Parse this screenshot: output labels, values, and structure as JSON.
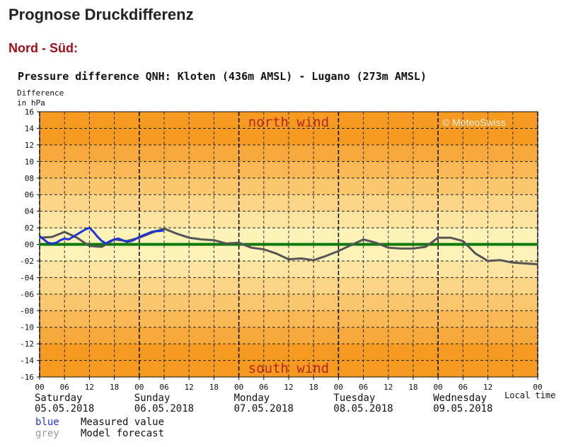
{
  "page": {
    "title": "Prognose Druckdifferenz",
    "section": "Nord - Süd:"
  },
  "colors": {
    "title_red": "#a0101a",
    "band_outer": "#f79a22",
    "band_inner": "#fff3ba",
    "zero_line": "#0a7a0a",
    "measured": "#1f33d6",
    "forecast": "#555555",
    "wind_label": "#b3251e"
  },
  "chart_data": {
    "type": "line",
    "title": "Pressure difference QNH: Kloten (436m AMSL) - Lugano (273m AMSL)",
    "ylabel": [
      "Difference",
      "in hPa"
    ],
    "ylim": [
      -16,
      16
    ],
    "yticks": [
      -16,
      -14,
      -12,
      -10,
      -8,
      -6,
      -4,
      -2,
      0,
      2,
      4,
      6,
      8,
      10,
      12,
      14,
      16
    ],
    "ytick_labels": [
      "-16",
      "-14",
      "-12",
      "-10",
      "-08",
      "-06",
      "-04",
      "-02",
      "00",
      "02",
      "04",
      "06",
      "08",
      "10",
      "12",
      "14",
      "16"
    ],
    "xlim": [
      0,
      120
    ],
    "xlabel": "Local time",
    "xtick_labels": [
      "00",
      "06",
      "12",
      "18",
      "00",
      "06",
      "12",
      "18",
      "00",
      "06",
      "12",
      "18",
      "00",
      "06",
      "12",
      "18",
      "00",
      "06",
      "12",
      "00"
    ],
    "xtick_hours": [
      0,
      6,
      12,
      18,
      24,
      30,
      36,
      42,
      48,
      54,
      60,
      66,
      72,
      78,
      84,
      90,
      96,
      102,
      108,
      120
    ],
    "days": [
      {
        "name": "Saturday",
        "date": "05.05.2018",
        "hour": 0
      },
      {
        "name": "Sunday",
        "date": "06.05.2018",
        "hour": 24
      },
      {
        "name": "Monday",
        "date": "07.05.2018",
        "hour": 48
      },
      {
        "name": "Tuesday",
        "date": "08.05.2018",
        "hour": 72
      },
      {
        "name": "Wednesday",
        "date": "09.05.2018",
        "hour": 96
      }
    ],
    "annotations": {
      "north": "north wind",
      "south": "south wind",
      "copyright": "© MeteoSwiss"
    },
    "legend": [
      {
        "color_word": "blue",
        "label": "Measured value"
      },
      {
        "color_word": "grey",
        "label": "Model forecast"
      }
    ],
    "series": [
      {
        "name": "Model forecast",
        "x": [
          0,
          3,
          6,
          9,
          12,
          15,
          18,
          21,
          24,
          27,
          30,
          33,
          36,
          39,
          42,
          45,
          48,
          51,
          54,
          57,
          60,
          63,
          66,
          69,
          72,
          75,
          78,
          81,
          84,
          87,
          90,
          93,
          96,
          99,
          102,
          105,
          108,
          111,
          114,
          117,
          120
        ],
        "y": [
          0.8,
          0.9,
          1.5,
          0.8,
          -0.2,
          -0.3,
          0.6,
          0.4,
          0.8,
          1.4,
          1.9,
          1.3,
          0.8,
          0.6,
          0.5,
          0.1,
          0.2,
          -0.4,
          -0.6,
          -1.1,
          -1.8,
          -1.7,
          -1.9,
          -1.4,
          -0.8,
          -0.1,
          0.6,
          0.2,
          -0.4,
          -0.5,
          -0.5,
          -0.3,
          0.8,
          0.8,
          0.4,
          -1.1,
          -2.0,
          -1.9,
          -2.2,
          -2.3,
          -2.4
        ]
      },
      {
        "name": "Measured value",
        "x": [
          0,
          1,
          2,
          3,
          4,
          5,
          6,
          7,
          8,
          9,
          10,
          11,
          12,
          13,
          14,
          15,
          16,
          17,
          18,
          19,
          20,
          21,
          22,
          23,
          24,
          25,
          26,
          27,
          28,
          29,
          30
        ],
        "y": [
          1.0,
          0.6,
          0.2,
          0.1,
          0.2,
          0.5,
          0.7,
          0.6,
          0.9,
          1.2,
          1.5,
          1.8,
          2.0,
          1.5,
          0.9,
          0.4,
          0.1,
          0.4,
          0.6,
          0.7,
          0.5,
          0.3,
          0.4,
          0.6,
          0.9,
          1.1,
          1.3,
          1.5,
          1.6,
          1.6,
          1.7
        ]
      }
    ]
  }
}
